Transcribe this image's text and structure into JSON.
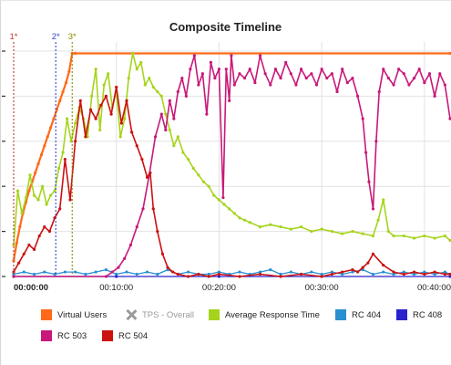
{
  "chart_data": {
    "type": "line",
    "title": "Composite Timeline",
    "x_tick_labels": [
      "00:00:00",
      "00:10:00",
      "00:20:00",
      "00:30:00",
      "00:40:00"
    ],
    "x_ticks_minutes": [
      0,
      10,
      20,
      30,
      40
    ],
    "x_range_minutes": [
      0,
      42.5
    ],
    "y_range": [
      0,
      100
    ],
    "y_grid": [
      0,
      20,
      40,
      60,
      80,
      100
    ],
    "grid": true,
    "markers": [
      {
        "label": "1*",
        "x_minutes": 0,
        "color": "#c0392b"
      },
      {
        "label": "2*",
        "x_minutes": 4.1,
        "color": "#3344cc"
      },
      {
        "label": "3*",
        "x_minutes": 5.7,
        "color": "#8a8a00"
      }
    ],
    "series": [
      {
        "name": "Virtual Users",
        "color": "#ff6a1a",
        "width": 2.2,
        "x": [
          0,
          0.3,
          0.6,
          0.9,
          1.2,
          1.5,
          1.8,
          2.1,
          2.4,
          2.7,
          3.0,
          3.3,
          3.6,
          3.9,
          4.2,
          4.5,
          4.8,
          5.1,
          5.4,
          5.7,
          6.0,
          42.5
        ],
        "y": [
          7,
          15,
          22,
          28,
          33,
          38,
          42,
          46,
          50,
          54,
          58,
          62,
          66,
          70,
          74,
          78,
          82,
          86,
          91,
          99,
          99,
          99
        ]
      },
      {
        "name": "TPS - Overall",
        "color": "#9a9a9a",
        "visible": false,
        "x": [],
        "y": []
      },
      {
        "name": "Average Response Time",
        "color": "#a6d41c",
        "width": 1.6,
        "x": [
          0,
          0.4,
          0.8,
          1.2,
          1.6,
          2.0,
          2.4,
          2.8,
          3.2,
          3.6,
          4.0,
          4.4,
          4.8,
          5.2,
          5.6,
          6.0,
          6.4,
          6.8,
          7.2,
          7.6,
          8.0,
          8.4,
          8.8,
          9.2,
          9.6,
          10.0,
          10.4,
          10.8,
          11.2,
          11.6,
          12.0,
          12.4,
          12.8,
          13.2,
          13.6,
          14.0,
          14.4,
          14.8,
          15.2,
          15.6,
          16.0,
          16.5,
          17.0,
          17.5,
          18.0,
          18.5,
          19.0,
          19.5,
          20.0,
          20.5,
          21.0,
          21.5,
          22.0,
          22.5,
          23.0,
          24.0,
          25.0,
          26.0,
          27.0,
          28.0,
          29.0,
          30.0,
          31.0,
          32.0,
          33.0,
          34.0,
          35.0,
          35.5,
          36.0,
          36.5,
          37.0,
          38.0,
          39.0,
          40.0,
          41.0,
          42.0,
          42.5
        ],
        "y": [
          14,
          38,
          28,
          35,
          45,
          36,
          34,
          40,
          32,
          36,
          38,
          48,
          55,
          70,
          60,
          68,
          75,
          70,
          62,
          80,
          92,
          65,
          85,
          90,
          75,
          82,
          62,
          70,
          88,
          99,
          92,
          95,
          85,
          88,
          84,
          82,
          80,
          72,
          65,
          58,
          62,
          55,
          52,
          48,
          45,
          42,
          40,
          36,
          34,
          32,
          30,
          28,
          26,
          25,
          24,
          22,
          23,
          22,
          21,
          22,
          20,
          21,
          20,
          19,
          20,
          19,
          18,
          25,
          34,
          20,
          18,
          18,
          17,
          18,
          17,
          18,
          16
        ]
      },
      {
        "name": "RC 404",
        "color": "#2a90d0",
        "width": 1.3,
        "x": [
          0,
          1,
          2,
          3,
          4,
          5,
          6,
          7,
          8,
          9,
          10,
          11,
          12,
          13,
          14,
          15,
          16,
          17,
          18,
          19,
          20,
          21,
          22,
          23,
          24,
          25,
          26,
          27,
          28,
          29,
          30,
          31,
          32,
          33,
          34,
          35,
          36,
          37,
          38,
          39,
          40,
          41,
          42,
          42.5
        ],
        "y": [
          1,
          2,
          1,
          2,
          1,
          2,
          2,
          1,
          2,
          3,
          1,
          2,
          1,
          2,
          1,
          3,
          1,
          2,
          1,
          1,
          2,
          1,
          2,
          1,
          2,
          3,
          1,
          2,
          1,
          2,
          1,
          2,
          1,
          2,
          3,
          1,
          2,
          1,
          2,
          1,
          2,
          1,
          2,
          1
        ]
      },
      {
        "name": "RC 408",
        "color": "#2a22cc",
        "width": 1.2,
        "x": [
          0,
          10,
          20,
          30,
          42.5
        ],
        "y": [
          0,
          0,
          0,
          0,
          0
        ]
      },
      {
        "name": "RC 503",
        "color": "#c8187a",
        "width": 1.6,
        "x": [
          0,
          9,
          9.6,
          10.2,
          10.8,
          11.4,
          12.0,
          12.6,
          13.2,
          13.8,
          14.4,
          14.8,
          15.2,
          15.6,
          16.0,
          16.4,
          16.8,
          17.2,
          17.6,
          18.0,
          18.4,
          18.8,
          19.2,
          19.6,
          20.0,
          20.4,
          20.7,
          21.0,
          21.2,
          21.5,
          22.0,
          22.5,
          23.0,
          23.5,
          24.0,
          24.5,
          25.0,
          25.5,
          26.0,
          26.5,
          27.0,
          27.5,
          28.0,
          28.5,
          29.0,
          29.5,
          30.0,
          30.5,
          31.0,
          31.5,
          32.0,
          32.5,
          33.0,
          33.5,
          34.0,
          34.3,
          34.6,
          35.0,
          35.3,
          35.6,
          36.0,
          36.5,
          37.0,
          37.5,
          38.0,
          38.5,
          39.0,
          39.5,
          40.0,
          40.5,
          41.0,
          41.5,
          42.0,
          42.5
        ],
        "y": [
          0,
          0,
          2,
          4,
          8,
          14,
          22,
          30,
          45,
          62,
          72,
          65,
          78,
          70,
          82,
          88,
          80,
          92,
          98,
          85,
          90,
          72,
          95,
          88,
          92,
          35,
          92,
          78,
          98,
          85,
          90,
          88,
          92,
          86,
          98,
          90,
          85,
          92,
          88,
          95,
          90,
          85,
          92,
          88,
          90,
          85,
          92,
          88,
          90,
          82,
          92,
          86,
          88,
          80,
          70,
          55,
          42,
          30,
          60,
          82,
          92,
          88,
          85,
          92,
          90,
          85,
          88,
          92,
          86,
          90,
          80,
          90,
          85,
          70
        ]
      },
      {
        "name": "RC 504",
        "color": "#cc1111",
        "width": 1.6,
        "x": [
          0,
          0.5,
          1.0,
          1.5,
          2.0,
          2.5,
          3.0,
          3.5,
          4.0,
          4.5,
          5.0,
          5.5,
          6.0,
          6.5,
          7.0,
          7.5,
          8.0,
          8.5,
          9.0,
          9.5,
          10.0,
          10.5,
          11.0,
          11.5,
          12.0,
          12.5,
          13.0,
          13.3,
          13.6,
          14.0,
          14.5,
          15.0,
          15.5,
          16.0,
          17.0,
          18.0,
          19.0,
          20.0,
          22.0,
          24.0,
          26.0,
          28.0,
          30.0,
          31.0,
          32.0,
          33.0,
          33.5,
          34.0,
          34.5,
          35.0,
          36.0,
          37.0,
          38.0,
          39.0,
          40.0,
          41.0,
          42.0,
          42.5
        ],
        "y": [
          2,
          6,
          10,
          14,
          12,
          18,
          22,
          20,
          26,
          30,
          52,
          34,
          60,
          78,
          62,
          74,
          70,
          76,
          80,
          72,
          84,
          68,
          78,
          64,
          58,
          52,
          44,
          46,
          30,
          20,
          10,
          4,
          2,
          1,
          0,
          1,
          0,
          1,
          0,
          1,
          0,
          1,
          0,
          1,
          2,
          3,
          2,
          4,
          6,
          10,
          5,
          2,
          1,
          2,
          1,
          2,
          1,
          1
        ]
      }
    ]
  },
  "legend": {
    "items": [
      {
        "label": "Virtual Users",
        "color": "#ff6a1a",
        "disabled": false
      },
      {
        "label": "TPS - Overall",
        "color": "#9a9a9a",
        "disabled": true
      },
      {
        "label": "Average Response Time",
        "color": "#a6d41c",
        "disabled": false
      },
      {
        "label": "RC 404",
        "color": "#2a90d0",
        "disabled": false
      },
      {
        "label": "RC 408",
        "color": "#2a22cc",
        "disabled": false
      },
      {
        "label": "RC 503",
        "color": "#c8187a",
        "disabled": false
      },
      {
        "label": "RC 504",
        "color": "#cc1111",
        "disabled": false
      }
    ]
  }
}
